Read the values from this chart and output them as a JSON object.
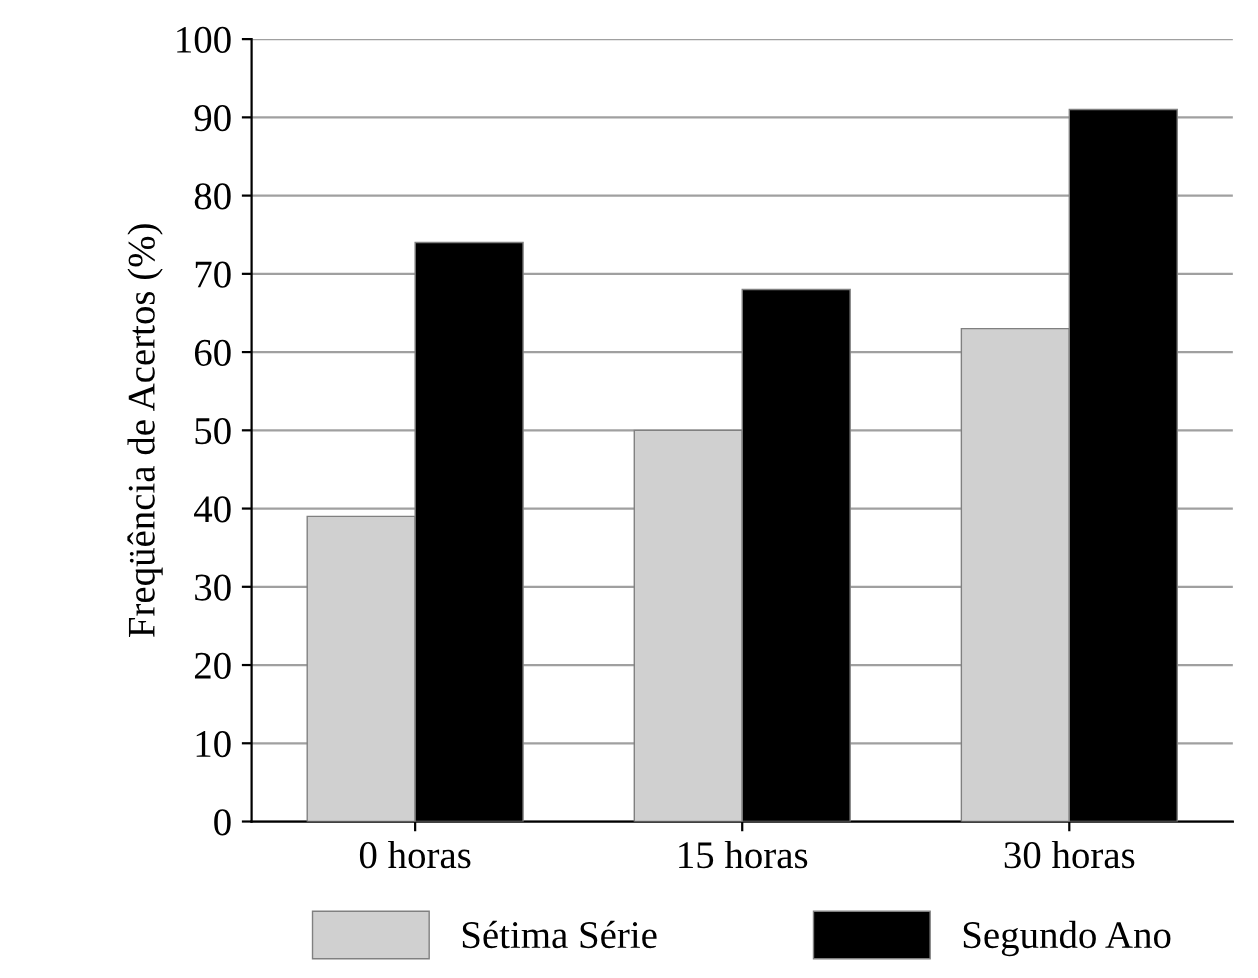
{
  "chart_data": {
    "type": "bar",
    "ylabel": "Freqüência de Acertos (%)",
    "categories": [
      "0 horas",
      "15 horas",
      "30 horas"
    ],
    "series": [
      {
        "name": "Sétima Série",
        "color": "#d0d0d0",
        "values": [
          39,
          50,
          63
        ]
      },
      {
        "name": "Segundo Ano",
        "color": "#000000",
        "values": [
          74,
          68,
          91
        ]
      }
    ],
    "ylim": [
      0,
      100
    ],
    "yticks": [
      0,
      10,
      20,
      30,
      40,
      50,
      60,
      70,
      80,
      90,
      100
    ],
    "grid": "y",
    "legend": "bottom"
  }
}
